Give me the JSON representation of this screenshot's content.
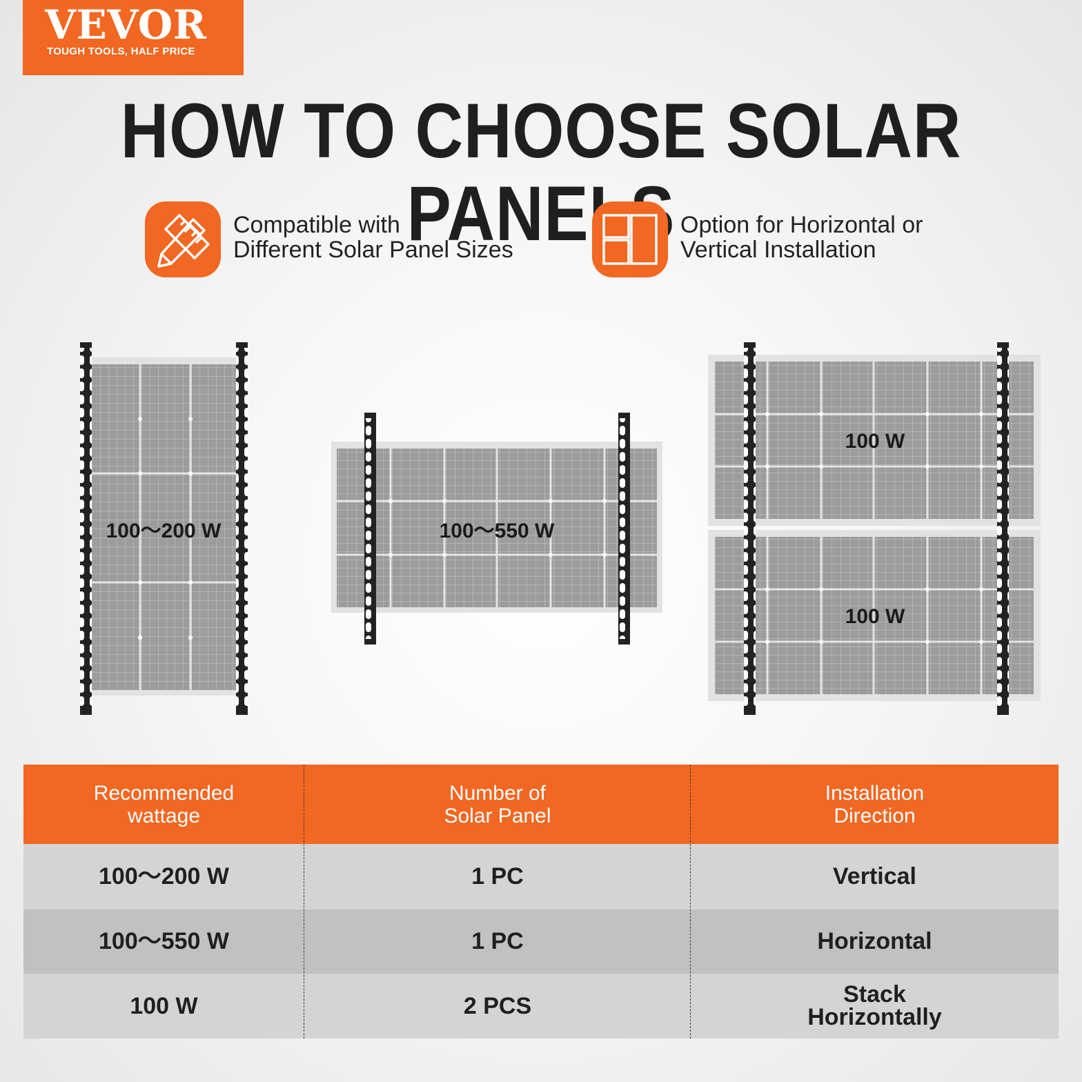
{
  "brand": {
    "name": "VEVOR",
    "tagline": "TOUGH TOOLS, HALF PRICE",
    "color": "#f26722"
  },
  "headline": "HOW TO CHOOSE SOLAR PANELS",
  "features": [
    {
      "icon": "ruler-pencil-icon",
      "line1": "Compatible with",
      "line2": "Different Solar Panel Sizes"
    },
    {
      "icon": "layout-grid-icon",
      "line1": "Option for Horizontal or",
      "line2": "Vertical Installation"
    }
  ],
  "diagrams": [
    {
      "orientation": "vertical",
      "labels": [
        "100～200 W"
      ]
    },
    {
      "orientation": "horizontal",
      "labels": [
        "100～550 W"
      ]
    },
    {
      "orientation": "stacked",
      "labels": [
        "100 W",
        "100 W"
      ]
    }
  ],
  "table": {
    "headers": [
      {
        "line1": "Recommended",
        "line2": "wattage"
      },
      {
        "line1": "Number of",
        "line2": "Solar Panel"
      },
      {
        "line1": "Installation",
        "line2": "Direction"
      }
    ],
    "rows": [
      {
        "wattage": "100～200 W",
        "count": "1 PC",
        "direction1": "Vertical",
        "direction2": ""
      },
      {
        "wattage": "100～550 W",
        "count": "1 PC",
        "direction1": "Horizontal",
        "direction2": ""
      },
      {
        "wattage": "100 W",
        "count": "2 PCS",
        "direction1": "Stack",
        "direction2": "Horizontally"
      }
    ],
    "row_colors": [
      "#d4d4d4",
      "#c1c1c1",
      "#d4d4d4"
    ]
  }
}
